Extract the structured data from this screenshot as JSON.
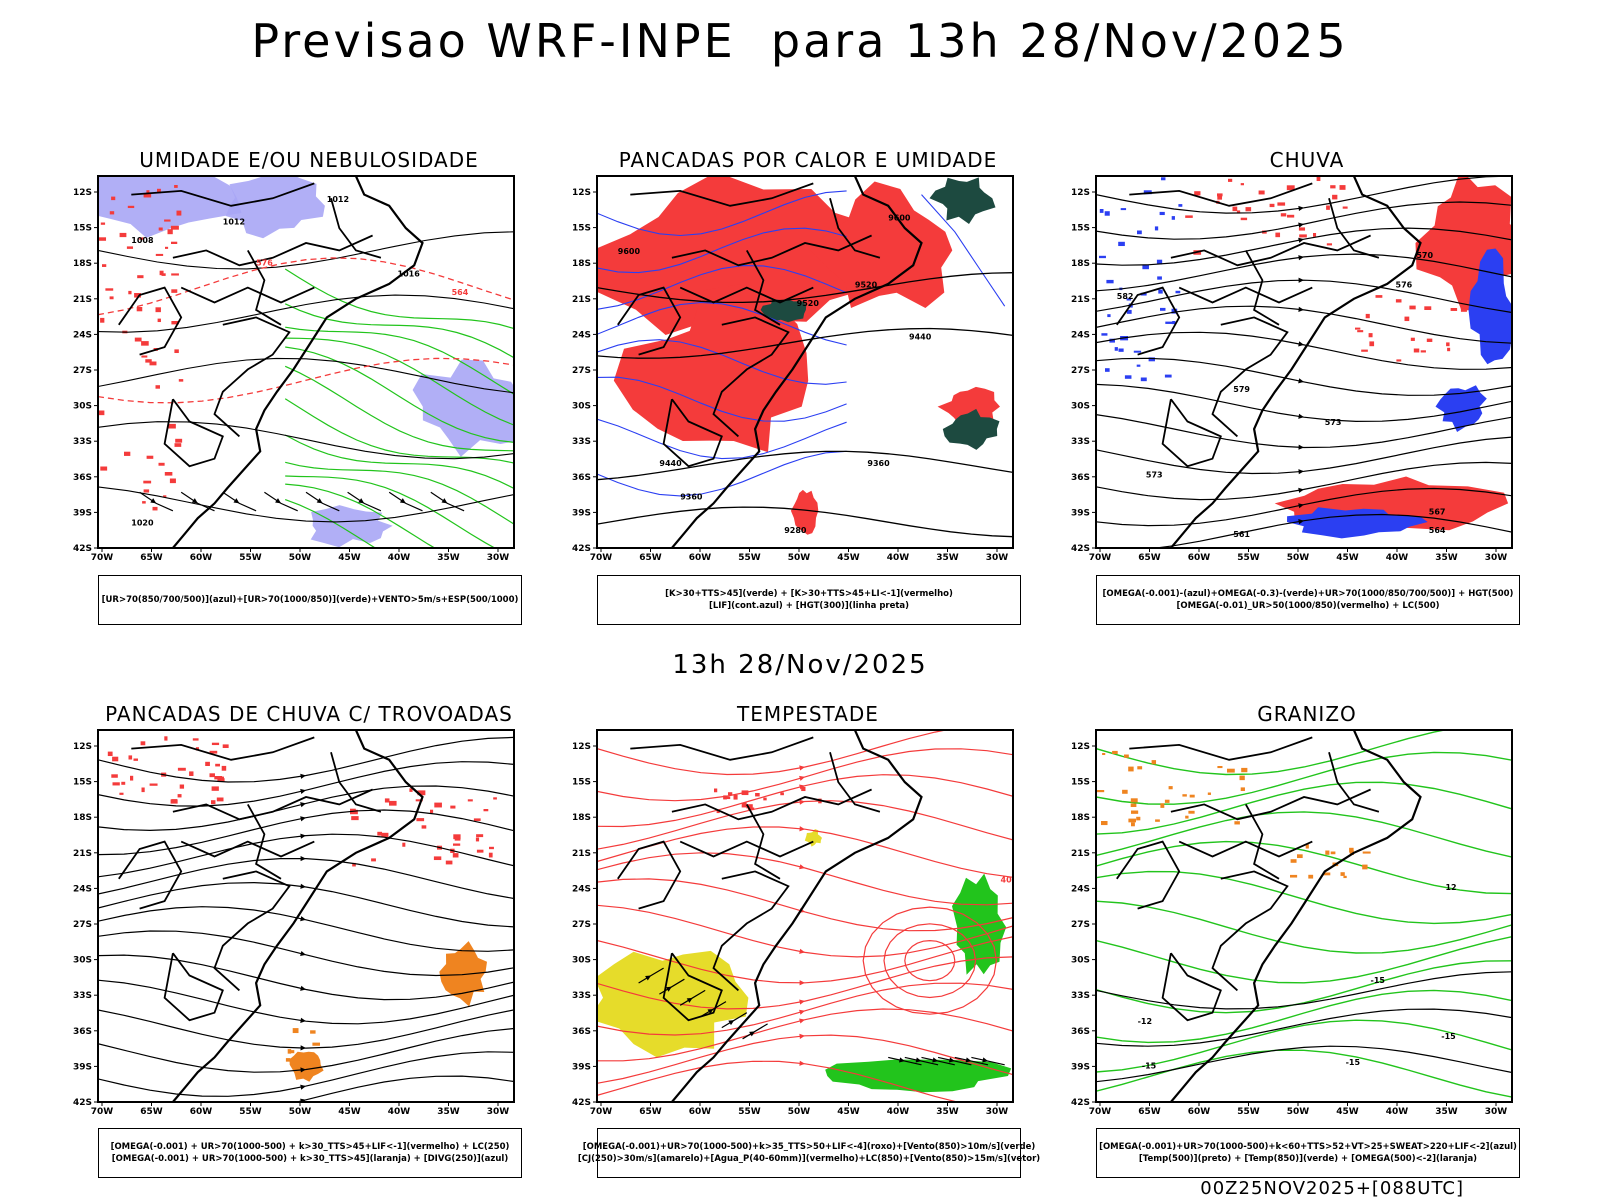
{
  "header": {
    "title": "Previsao WRF-INPE  para 13h 28/Nov/2025"
  },
  "subtitle": "13h 28/Nov/2025",
  "footer": "00Z25NOV2025+[088UTC]",
  "axes": {
    "lat_ticks": [
      "12S",
      "15S",
      "18S",
      "21S",
      "24S",
      "27S",
      "30S",
      "33S",
      "36S",
      "39S",
      "42S"
    ],
    "lon_ticks": [
      "70W",
      "65W",
      "60W",
      "55W",
      "50W",
      "45W",
      "40W",
      "35W",
      "30W"
    ]
  },
  "colors": {
    "red": "#f43b3b",
    "green": "#22c41c",
    "blue": "#2b3ff2",
    "lavender": "#a9a6f5",
    "darkgreen": "#1d4a40",
    "yellow": "#e6dc2a",
    "orange": "#ef8420",
    "black": "#000000",
    "purple": "#b000b0"
  },
  "panels": [
    {
      "id": "umidade",
      "title": "UMIDADE E/OU NEBULOSIDADE",
      "legend": [
        "[UR>70(850/700/500)](azul)+[UR>70(1000/850)](verde)+VENTO>5m/s+ESP(500/1000)"
      ],
      "labels": [
        "1012",
        "1008",
        "1016",
        "1020",
        "576",
        "564"
      ]
    },
    {
      "id": "pancadas_calor",
      "title": "PANCADAS POR CALOR E UMIDADE",
      "legend": [
        "[K>30+TTS>45](verde) + [K>30+TTS>45+LI<-1](vermelho)",
        "[LIF](cont.azul) + [HGT(300)](linha preta)"
      ],
      "labels": [
        "9600",
        "9520",
        "9440",
        "9360",
        "9280"
      ]
    },
    {
      "id": "chuva",
      "title": "CHUVA",
      "legend": [
        "[OMEGA(-0.001)-(azul)+OMEGA(-0.3)-(verde)+UR>70(1000/850/700/500)] + HGT(500)",
        "[OMEGA(-0.01)_UR>50(1000/850)(vermelho) + LC(500)"
      ],
      "labels": [
        "582",
        "579",
        "576",
        "573",
        "570",
        "567",
        "564",
        "561"
      ]
    },
    {
      "id": "trovoadas",
      "title": "PANCADAS DE CHUVA C/ TROVOADAS",
      "legend": [
        "[OMEGA(-0.001) + UR>70(1000-500) + k>30_TTS>45+LIF<-1](vermelho) + LC(250)",
        "[OMEGA(-0.001) + UR>70(1000-500) + k>30_TTS>45](laranja) + [DIVG(250)](azul)"
      ],
      "labels": []
    },
    {
      "id": "tempestade",
      "title": "TEMPESTADE",
      "legend": [
        "[OMEGA(-0.001)+UR>70(1000-500)+k>35_TTS>50+LIF<-4](roxo)+[Vento(850)>10m/s](verde)",
        "[CJ(250)>30m/s](amarelo)+[Agua_P(40-60mm)](vermelho)+LC(850)+[Vento(850)>15m/s](vetor)"
      ],
      "labels": [
        "40"
      ]
    },
    {
      "id": "granizo",
      "title": "GRANIZO",
      "legend": [
        "[OMEGA(-0.001)+UR>70(1000-500)+k<60+TTS>52+VT>25+SWEAT>220+LIF<-2](azul)",
        "[Temp(500)](preto) + [Temp(850)](verde) + [OMEGA(500)<-2](laranja)"
      ],
      "labels": [
        "-12",
        "-15",
        "12"
      ]
    }
  ]
}
